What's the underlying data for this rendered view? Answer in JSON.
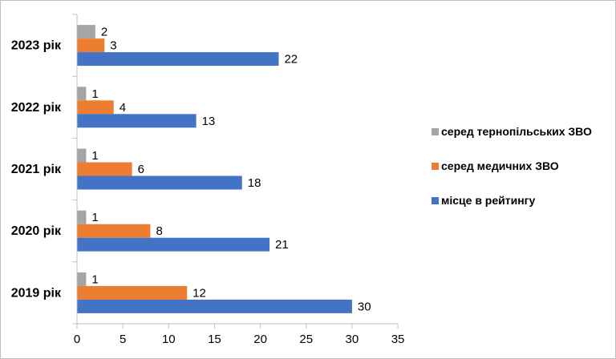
{
  "chart_data": {
    "type": "bar",
    "orientation": "horizontal",
    "categories": [
      "2019 рік",
      "2020 рік",
      "2021 рік",
      "2022 рік",
      "2023 рік"
    ],
    "series": [
      {
        "name": "місце в рейтингу",
        "values": [
          30,
          21,
          18,
          13,
          22
        ],
        "color": "#4472C4"
      },
      {
        "name": "серед медичних ЗВО",
        "values": [
          12,
          8,
          6,
          4,
          3
        ],
        "color": "#ED7D31"
      },
      {
        "name": "серед тернопільських ЗВО",
        "values": [
          1,
          1,
          1,
          1,
          2
        ],
        "color": "#A5A5A5"
      }
    ],
    "xlim": [
      0,
      35
    ],
    "xticks": [
      "0",
      "5",
      "10",
      "15",
      "20",
      "25",
      "30",
      "35"
    ],
    "legend": {
      "position": "right",
      "items": [
        "серед тернопільських ЗВО",
        "серед медичних ЗВО",
        "місце в рейтингу"
      ]
    },
    "grid": false,
    "data_labels": true
  }
}
